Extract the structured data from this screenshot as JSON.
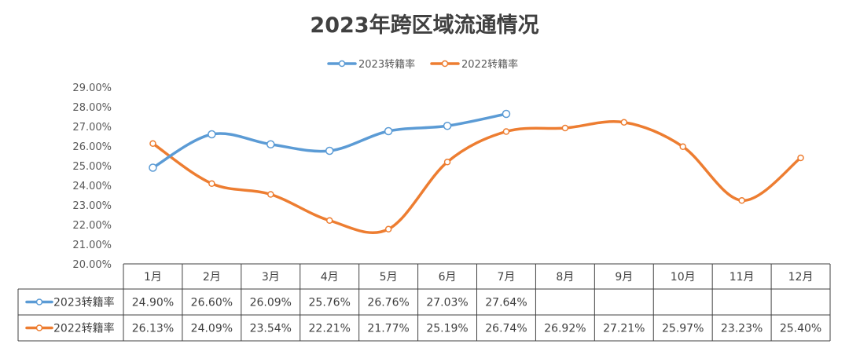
{
  "chart_data": {
    "type": "line",
    "title": "2023年跨区域流通情况",
    "categories": [
      "1月",
      "2月",
      "3月",
      "4月",
      "5月",
      "6月",
      "7月",
      "8月",
      "9月",
      "10月",
      "11月",
      "12月"
    ],
    "ylim": [
      20,
      29
    ],
    "y_ticks": [
      "20.00%",
      "21.00%",
      "22.00%",
      "23.00%",
      "24.00%",
      "25.00%",
      "26.00%",
      "27.00%",
      "28.00%",
      "29.00%"
    ],
    "legend_position": "top",
    "series": [
      {
        "name": "2023转籍率",
        "color": "#5b9bd5",
        "values": [
          24.9,
          26.6,
          26.09,
          25.76,
          26.76,
          27.03,
          27.64,
          null,
          null,
          null,
          null,
          null
        ],
        "labels": [
          "24.90%",
          "26.60%",
          "26.09%",
          "25.76%",
          "26.76%",
          "27.03%",
          "27.64%",
          "",
          "",
          "",
          "",
          ""
        ]
      },
      {
        "name": "2022转籍率",
        "color": "#ed7d31",
        "values": [
          26.13,
          24.09,
          23.54,
          22.21,
          21.77,
          25.19,
          26.74,
          26.92,
          27.21,
          25.97,
          23.23,
          25.4
        ],
        "labels": [
          "26.13%",
          "24.09%",
          "23.54%",
          "22.21%",
          "21.77%",
          "25.19%",
          "26.74%",
          "26.92%",
          "27.21%",
          "25.97%",
          "23.23%",
          "25.40%"
        ]
      }
    ]
  }
}
